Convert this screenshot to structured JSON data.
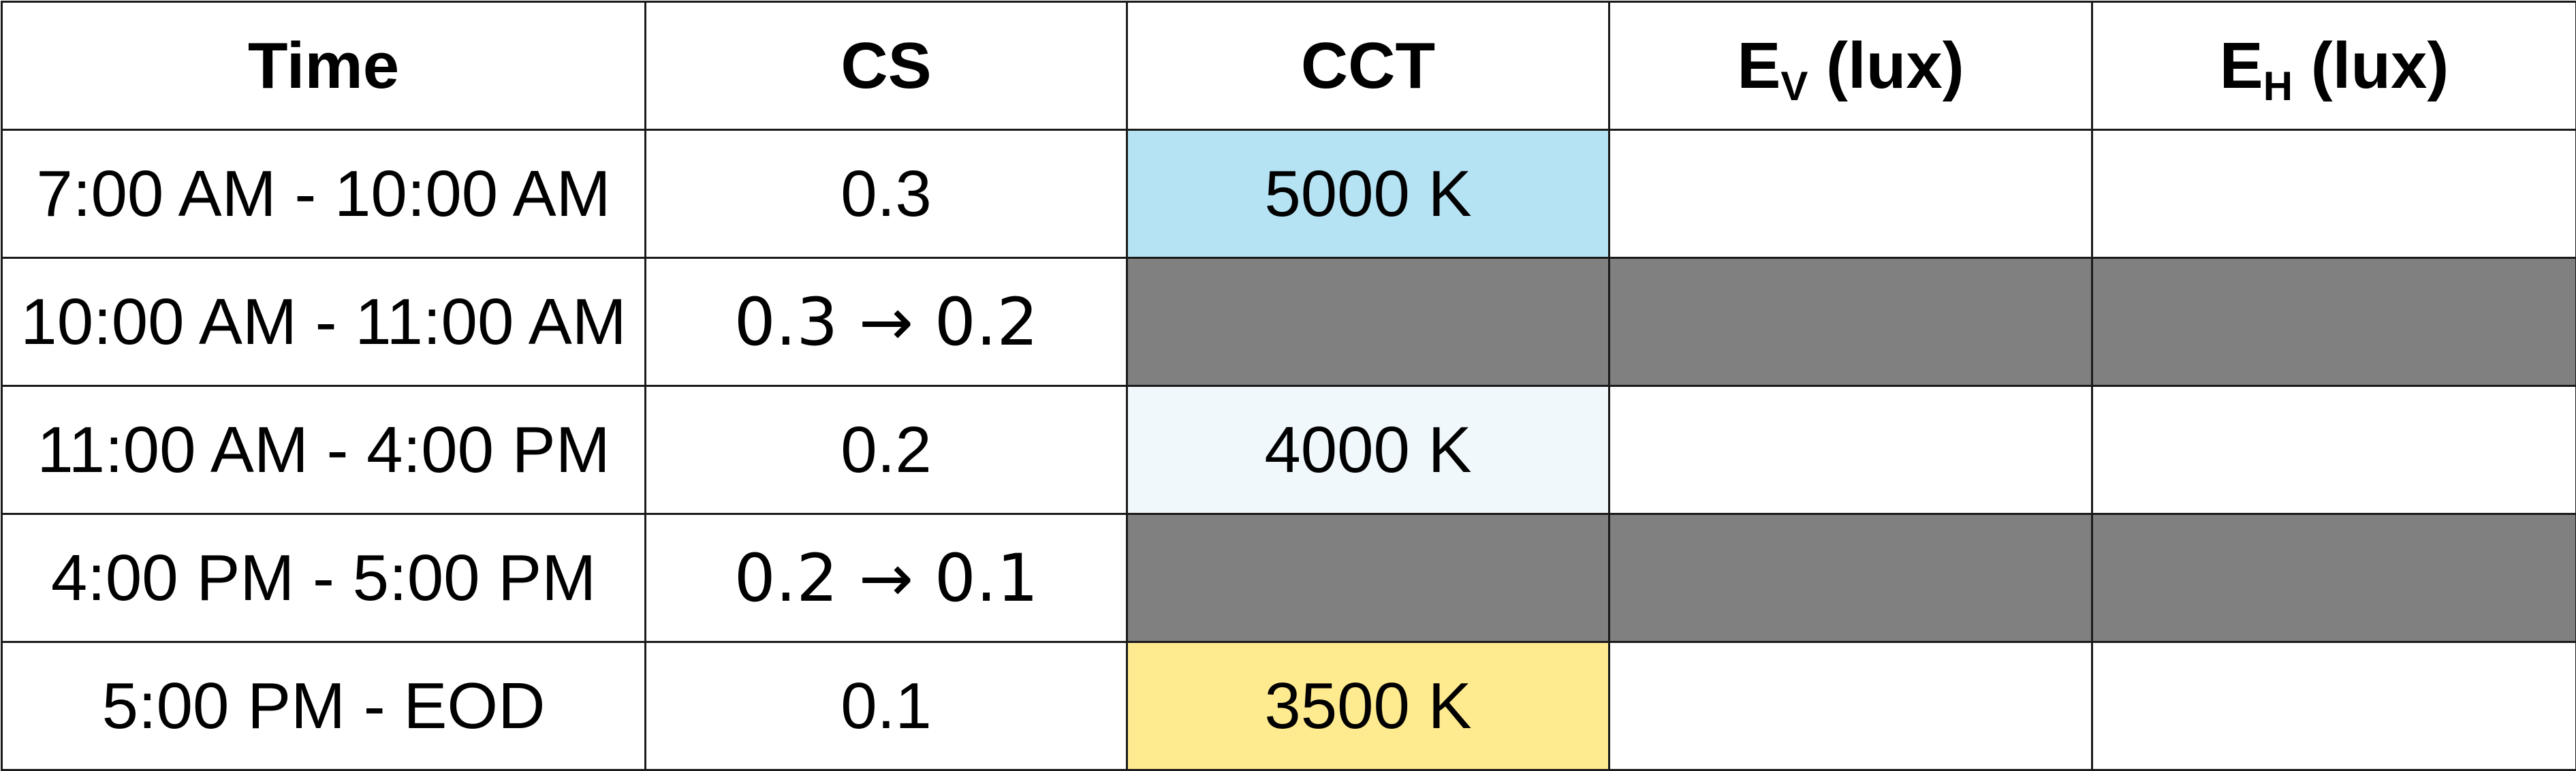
{
  "table": {
    "headers": {
      "time": "Time",
      "cs": "CS",
      "cct": "CCT",
      "ev_main": "E",
      "ev_sub": "V",
      "ev_unit": "(lux)",
      "eh_main": "E",
      "eh_sub": "H",
      "eh_unit": "(lux)"
    },
    "rows": [
      {
        "time": "7:00 AM - 10:00 AM",
        "cs": "0.3",
        "cct": "5000 K",
        "ev": "",
        "eh": ""
      },
      {
        "time": "10:00 AM - 11:00 AM",
        "cs": "0.3 → 0.2",
        "cct": "",
        "ev": "",
        "eh": ""
      },
      {
        "time": "11:00 AM - 4:00 PM",
        "cs": "0.2",
        "cct": "4000 K",
        "ev": "",
        "eh": ""
      },
      {
        "time": "4:00 PM - 5:00 PM",
        "cs": "0.2 → 0.1",
        "cct": "",
        "ev": "",
        "eh": ""
      },
      {
        "time": "5:00 PM - EOD",
        "cs": "0.1",
        "cct": "3500 K",
        "ev": "",
        "eh": ""
      }
    ]
  },
  "colors": {
    "cct_5000k": "#b5e3f3",
    "cct_4000k": "#f0f8fc",
    "cct_3500k": "#ffeb8f",
    "transition_gray": "#808080",
    "grid_line": "#1a1a1a"
  }
}
